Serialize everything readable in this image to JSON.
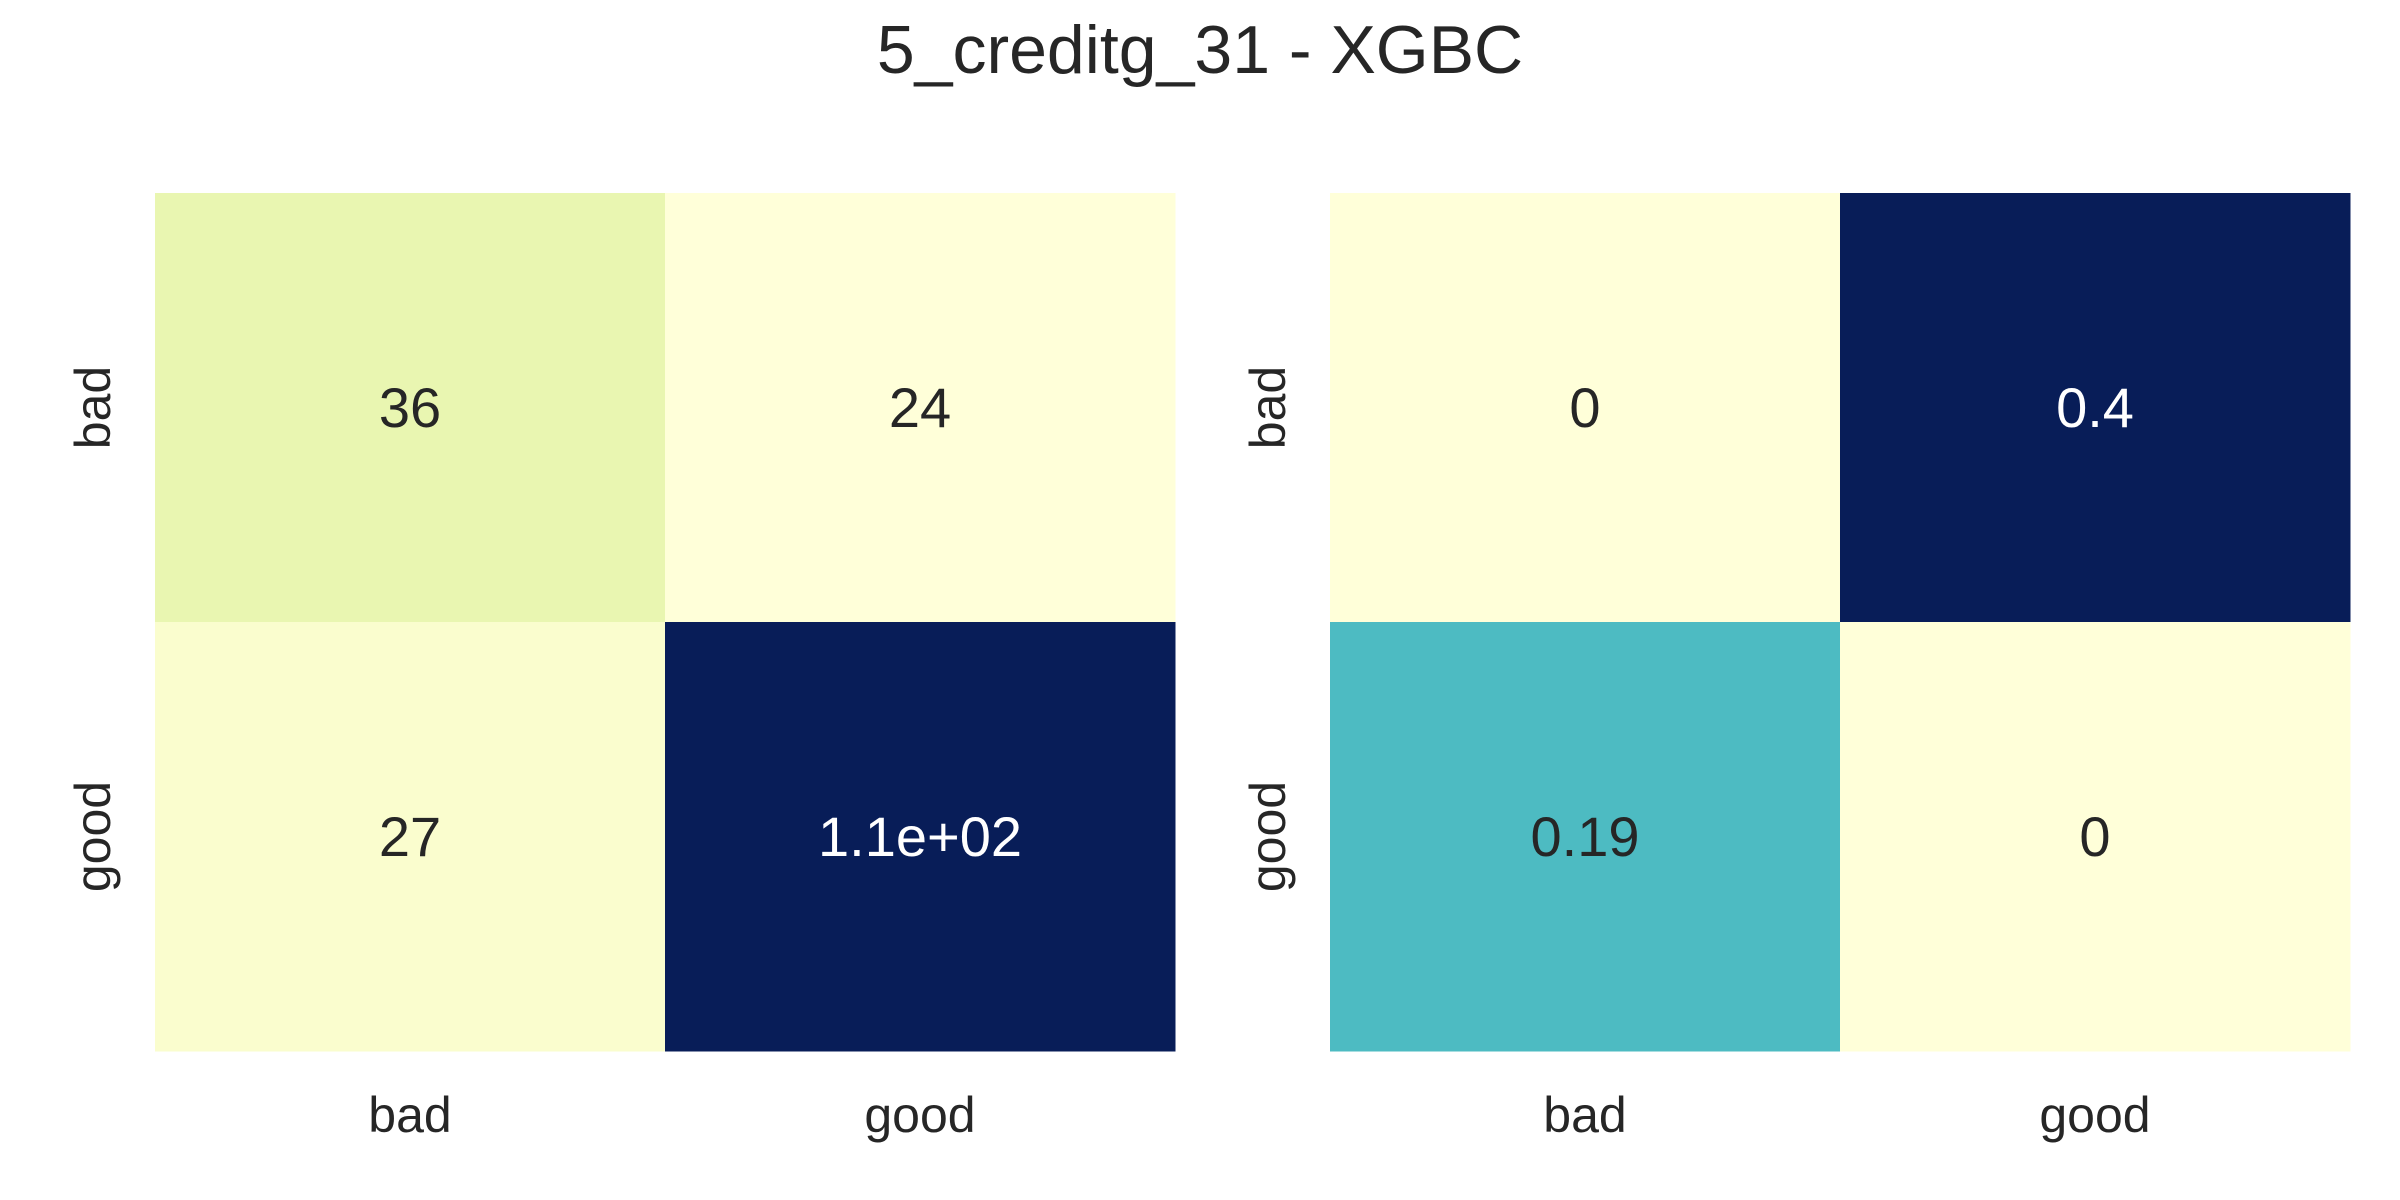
{
  "title": "5_creditg_31 - XGBC",
  "chart_data": [
    {
      "type": "heatmap",
      "x_labels": [
        "bad",
        "good"
      ],
      "y_labels": [
        "bad",
        "good"
      ],
      "values": [
        [
          36,
          24
        ],
        [
          27,
          110
        ]
      ],
      "annotations": [
        [
          "36",
          "24"
        ],
        [
          "27",
          "1.1e+02"
        ]
      ],
      "colormap": "YlGnBu",
      "colorbar": false
    },
    {
      "type": "heatmap",
      "x_labels": [
        "bad",
        "good"
      ],
      "y_labels": [
        "bad",
        "good"
      ],
      "values": [
        [
          0,
          0.4
        ],
        [
          0.19,
          0
        ]
      ],
      "annotations": [
        [
          "0",
          "0.4"
        ],
        [
          "0.19",
          "0"
        ]
      ],
      "colormap": "YlGnBu",
      "colorbar": false
    }
  ]
}
